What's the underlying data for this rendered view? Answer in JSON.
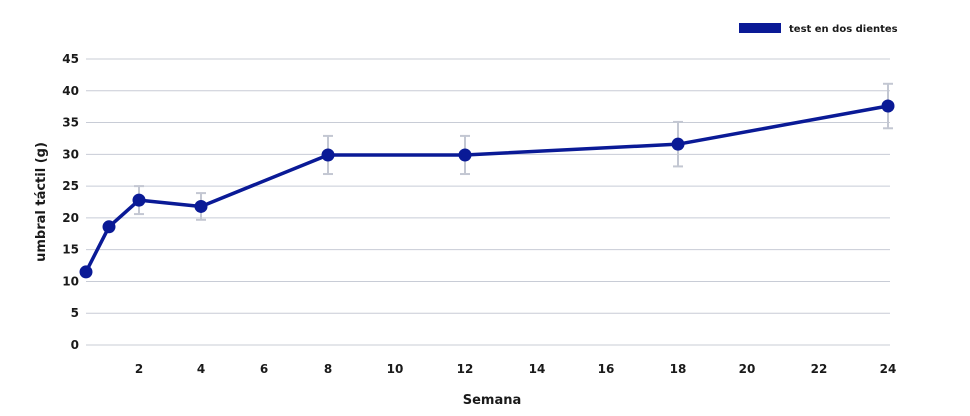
{
  "chart_data": {
    "type": "line",
    "xlabel": "Semana",
    "ylabel": "umbral táctil (g)",
    "ylim": [
      0,
      45
    ],
    "yticks": [
      0,
      5,
      10,
      15,
      20,
      25,
      30,
      35,
      40,
      45
    ],
    "xticks": [
      "2",
      "4",
      "6",
      "8",
      "10",
      "12",
      "14",
      "16",
      "18",
      "20",
      "22",
      "24"
    ],
    "grid": true,
    "legend_position": "top-right",
    "colors": {
      "series": "#0a1a96",
      "grid": "#c8ccd6",
      "error_bar": "#c3c7d2"
    },
    "series": [
      {
        "name": "test en dos dientes",
        "points": [
          {
            "x": "0",
            "y": 11.5,
            "err": null
          },
          {
            "x": "1",
            "y": 18.6,
            "err": null
          },
          {
            "x": "2",
            "y": 22.8,
            "err": 2.2
          },
          {
            "x": "4",
            "y": 21.8,
            "err": 2.1
          },
          {
            "x": "8",
            "y": 29.9,
            "err": 3.0
          },
          {
            "x": "12",
            "y": 29.9,
            "err": 3.0
          },
          {
            "x": "18",
            "y": 31.6,
            "err": 3.5
          },
          {
            "x": "24",
            "y": 37.6,
            "err": 3.5
          }
        ]
      }
    ]
  }
}
